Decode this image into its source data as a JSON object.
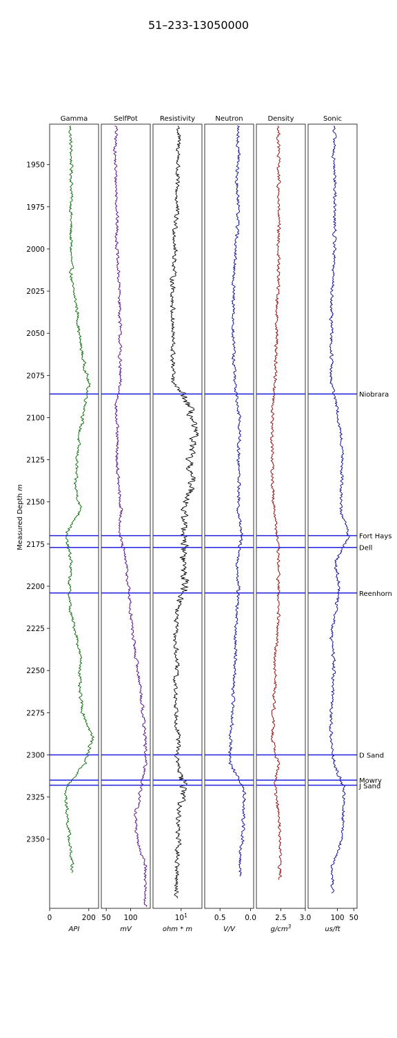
{
  "chart_data": {
    "type": "line",
    "title": "51–233-13050000",
    "ylabel": "Measured Depth m",
    "depth_range": [
      1926,
      2391
    ],
    "depth_ticks": [
      1950,
      1975,
      2000,
      2025,
      2050,
      2075,
      2100,
      2125,
      2150,
      2175,
      2200,
      2225,
      2250,
      2275,
      2300,
      2325,
      2350
    ],
    "depth_data": [
      1930,
      1945,
      1960,
      1975,
      1990,
      2005,
      2020,
      2035,
      2050,
      2065,
      2080,
      2095,
      2110,
      2125,
      2140,
      2155,
      2170,
      2185,
      2200,
      2215,
      2230,
      2245,
      2260,
      2275,
      2290,
      2305,
      2320,
      2335,
      2350,
      2365
    ],
    "tracks": [
      {
        "name": "Gamma",
        "unit": "API",
        "xlim": [
          0,
          250
        ],
        "tick_values": [
          0,
          200
        ],
        "tick_labels": [
          "0",
          "200"
        ],
        "color": "#006400",
        "values": [
          105,
          110,
          112,
          110,
          108,
          110,
          112,
          140,
          150,
          170,
          200,
          180,
          150,
          140,
          130,
          160,
          80,
          110,
          100,
          105,
          140,
          160,
          150,
          170,
          220,
          180,
          80,
          90,
          100,
          115
        ],
        "max_depth": 2370
      },
      {
        "name": "SelfPot",
        "unit": "mV",
        "xlim": [
          40,
          140
        ],
        "tick_values": [
          50,
          100
        ],
        "tick_labels": [
          "50",
          "100"
        ],
        "color": "#4b0082",
        "values": [
          70,
          68,
          70,
          72,
          72,
          72,
          76,
          78,
          78,
          78,
          78,
          70,
          72,
          72,
          75,
          80,
          78,
          90,
          95,
          100,
          105,
          112,
          120,
          125,
          130,
          130,
          122,
          110,
          112,
          130
        ],
        "max_depth": 2390
      },
      {
        "name": "Resistivity",
        "unit": "ohm * m",
        "xlim": [
          1,
          55
        ],
        "log": true,
        "tick_values": [
          10
        ],
        "tick_labels": [
          "10¹"
        ],
        "color": "#000000",
        "values": [
          8,
          8,
          7,
          7,
          6,
          6,
          5,
          5,
          5,
          5,
          5,
          20,
          30,
          18,
          25,
          12,
          14,
          12,
          14,
          7,
          6,
          7,
          6,
          7,
          8,
          7,
          13,
          8,
          8,
          7
        ],
        "max_depth": 2385
      },
      {
        "name": "Neutron",
        "unit": "V/V",
        "xlim": [
          0.75,
          -0.05
        ],
        "tick_values": [
          0.5,
          0.0
        ],
        "tick_labels": [
          "0.5",
          "0.0"
        ],
        "color": "#00008b",
        "values": [
          0.2,
          0.2,
          0.22,
          0.2,
          0.22,
          0.25,
          0.28,
          0.28,
          0.28,
          0.28,
          0.25,
          0.2,
          0.18,
          0.2,
          0.18,
          0.2,
          0.15,
          0.22,
          0.2,
          0.22,
          0.25,
          0.25,
          0.28,
          0.3,
          0.32,
          0.34,
          0.1,
          0.12,
          0.13,
          0.18
        ],
        "max_depth": 2372
      },
      {
        "name": "Density",
        "unit": "g/cm³",
        "xlim": [
          2.0,
          3.0
        ],
        "tick_values": [
          2.5,
          3.0
        ],
        "tick_labels": [
          "2.5",
          "3.0"
        ],
        "color": "#8b0000",
        "values": [
          2.45,
          2.45,
          2.45,
          2.45,
          2.45,
          2.45,
          2.45,
          2.42,
          2.42,
          2.4,
          2.38,
          2.33,
          2.32,
          2.33,
          2.33,
          2.37,
          2.42,
          2.45,
          2.45,
          2.45,
          2.42,
          2.38,
          2.38,
          2.35,
          2.33,
          2.45,
          2.38,
          2.45,
          2.48,
          2.48
        ],
        "max_depth": 2374
      },
      {
        "name": "Sonic",
        "unit": "us/ft",
        "xlim": [
          190,
          40
        ],
        "tick_values": [
          100,
          50
        ],
        "tick_labels": [
          "100",
          "50"
        ],
        "color": "#00008b",
        "values": [
          110,
          110,
          108,
          108,
          108,
          110,
          115,
          118,
          118,
          118,
          118,
          100,
          90,
          85,
          88,
          90,
          65,
          105,
          95,
          105,
          120,
          110,
          115,
          120,
          120,
          110,
          80,
          82,
          85,
          115
        ],
        "max_depth": 2382
      }
    ],
    "formation_tops": [
      {
        "name": "Niobrara",
        "depth": 2086
      },
      {
        "name": "Fort Hays",
        "depth": 2170
      },
      {
        "name": "Dell",
        "depth": 2177
      },
      {
        "name": "Reenhorn",
        "depth": 2204
      },
      {
        "name": "D Sand",
        "depth": 2300
      },
      {
        "name": "Mowry",
        "depth": 2315
      },
      {
        "name": "J Sand",
        "depth": 2318
      }
    ],
    "tops_color": "#1f1fdd",
    "grid": false
  }
}
